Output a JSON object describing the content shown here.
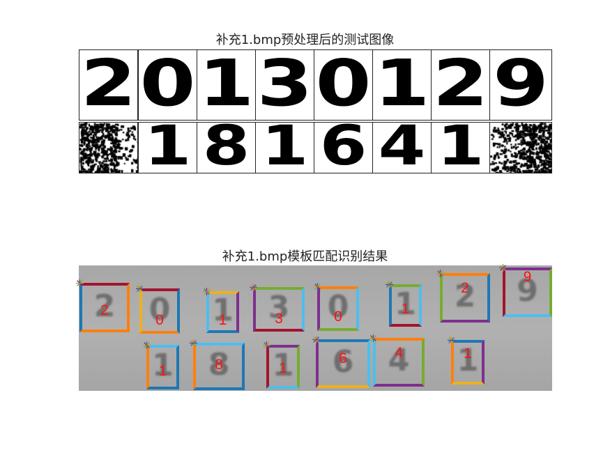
{
  "title_top": "补充1.bmp预处理后的测试图像",
  "title_bottom": "补充1.bmp模板匹配识别结果",
  "preprocessed_tiles": {
    "row1": [
      "2",
      "0",
      "1",
      "3",
      "0",
      "1",
      "2",
      "9"
    ],
    "row2": [
      "",
      "1",
      "8",
      "1",
      "6",
      "4",
      "1",
      ""
    ]
  },
  "recognized": [
    "2",
    "0",
    "1",
    "3",
    "0",
    "1",
    "2",
    "9",
    "1",
    "8",
    "1",
    "6",
    "4",
    "1"
  ],
  "colors": {
    "label": "#ff1a1a",
    "blue": "#1f77b4",
    "orange": "#ff7f0e",
    "yellow": "#edb120",
    "purple": "#7e2f8e",
    "green": "#77ac30",
    "cyan": "#4dbeee",
    "red": "#a2142f"
  }
}
